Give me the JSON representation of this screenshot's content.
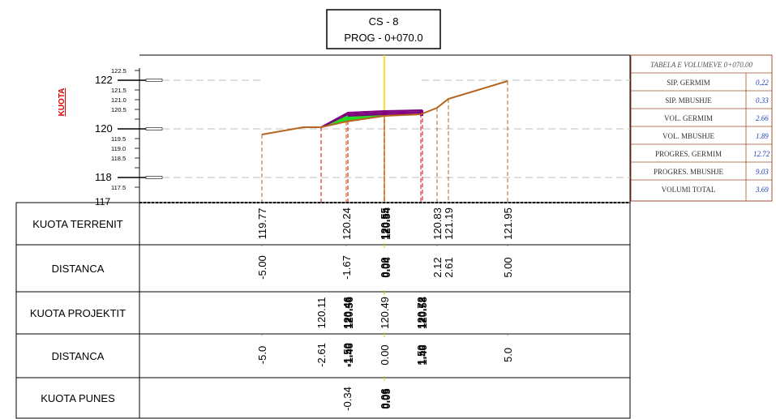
{
  "title": {
    "line1": "CS - 8",
    "line2": "PROG - 0+070.0"
  },
  "axis": {
    "label": "KUOTA",
    "major_ticks": [
      "122",
      "120",
      "118",
      "117"
    ],
    "minor_ticks": [
      "122.5",
      "121.5",
      "121.0",
      "120.5",
      "119.5",
      "119.0",
      "118.5",
      "117.5"
    ]
  },
  "volume_table": {
    "title": "TABELA E VOLUMEVE 0+070.00",
    "rows": [
      {
        "label": "SIP. GERMIM",
        "value": "0.22"
      },
      {
        "label": "SIP. MBUSHJE",
        "value": "0.33"
      },
      {
        "label": "VOL. GERMIM",
        "value": "2.66"
      },
      {
        "label": "VOL. MBUSHJE",
        "value": "1.89"
      },
      {
        "label": "PROGRES. GERMIM",
        "value": "12.72"
      },
      {
        "label": "PROGRES. MBUSHJE",
        "value": "9.03"
      },
      {
        "label": "VOLUMI TOTAL",
        "value": "3.69"
      }
    ]
  },
  "table_rows": [
    {
      "label": "KUOTA TERRENIT",
      "values": [
        {
          "text": "119.77",
          "bold": false
        },
        {
          "text": "120.24",
          "bold": false
        },
        {
          "text": "120.55",
          "bold": true
        },
        {
          "text": "120.54",
          "bold": true
        },
        {
          "text": "120.83",
          "bold": false
        },
        {
          "text": "121.19",
          "bold": false
        },
        {
          "text": "121.95",
          "bold": false
        }
      ]
    },
    {
      "label": "DISTANCA",
      "values": [
        {
          "text": "-5.00",
          "bold": false
        },
        {
          "text": "-1.67",
          "bold": false
        },
        {
          "text": "0.00",
          "bold": true
        },
        {
          "text": "0.04",
          "bold": true
        },
        {
          "text": "2.12",
          "bold": false
        },
        {
          "text": "2.61",
          "bold": false
        },
        {
          "text": "5.00",
          "bold": false
        }
      ]
    },
    {
      "label": "KUOTA PROJEKTIT",
      "values": [
        {
          "text": "120.11",
          "bold": false
        },
        {
          "text": "120.46",
          "bold": true
        },
        {
          "text": "120.56",
          "bold": true
        },
        {
          "text": "120.49",
          "bold": false
        },
        {
          "text": "120.72",
          "bold": true
        },
        {
          "text": "120.58",
          "bold": true
        }
      ]
    },
    {
      "label": "DISTANCA",
      "values": [
        {
          "text": "-5.0",
          "bold": false
        },
        {
          "text": "-2.61",
          "bold": false
        },
        {
          "text": "-1.50",
          "bold": true
        },
        {
          "text": "-1.46",
          "bold": true
        },
        {
          "text": "0.00",
          "bold": false
        },
        {
          "text": "1.50",
          "bold": true
        },
        {
          "text": "1.46",
          "bold": true
        },
        {
          "text": "5.0",
          "bold": false
        }
      ]
    },
    {
      "label": "KUOTA PUNES",
      "values": [
        {
          "text": "-0.34",
          "bold": false
        },
        {
          "text": "0.06",
          "bold": true
        },
        {
          "text": "0.05",
          "bold": true
        }
      ]
    }
  ],
  "colors": {
    "terrain": "#b5651d",
    "design": "#800080",
    "fill_area": "#22dd22",
    "axis_line": "#ffd700",
    "design_drop": "#e00000",
    "terrain_drop": "#b5651d",
    "kuota_label": "#e00000",
    "table_value": "#1f3fbf"
  }
}
